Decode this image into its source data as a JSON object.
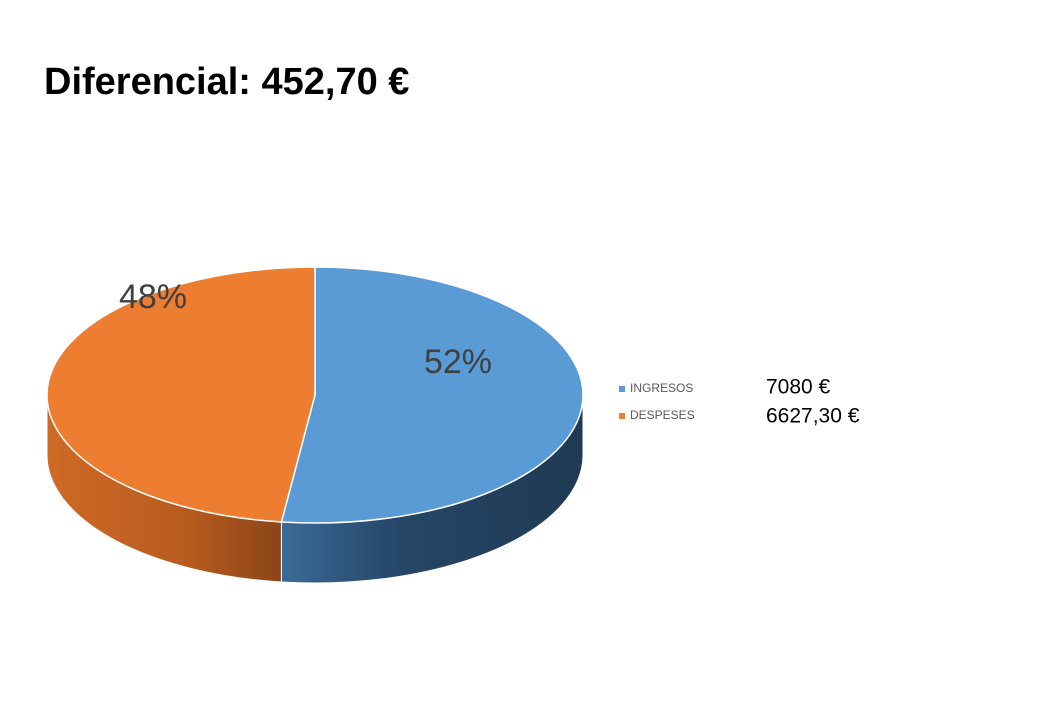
{
  "chart_data": {
    "type": "pie",
    "title": "Diferencial: 452,70 €",
    "categories": [
      "INGRESOS",
      "DESPESES"
    ],
    "values": [
      52,
      48
    ],
    "value_labels": [
      "52%",
      "48%"
    ],
    "colors": [
      "#5b9bd5",
      "#ed7d31"
    ],
    "annotations": [
      "7080 €",
      "6627,30 €"
    ],
    "legend": "right"
  }
}
